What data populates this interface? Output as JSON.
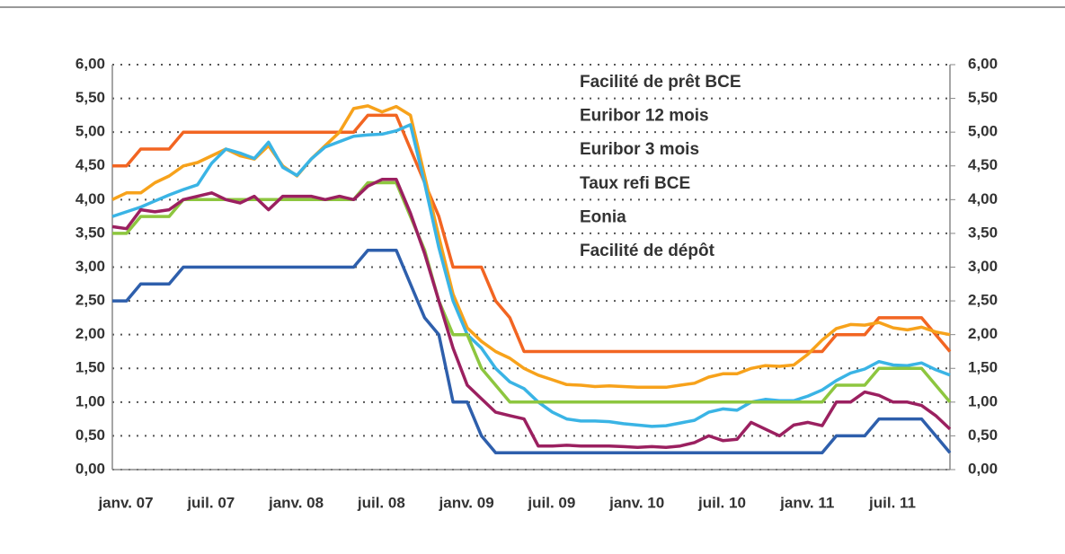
{
  "chart_data": {
    "type": "line",
    "categories": [
      "janv. 07",
      null,
      null,
      null,
      null,
      null,
      "juil. 07",
      null,
      null,
      null,
      null,
      null,
      "janv. 08",
      null,
      null,
      null,
      null,
      null,
      "juil. 08",
      null,
      null,
      null,
      null,
      null,
      "janv. 09",
      null,
      null,
      null,
      null,
      null,
      "juil. 09",
      null,
      null,
      null,
      null,
      null,
      "janv. 10",
      null,
      null,
      null,
      null,
      null,
      "juil. 10",
      null,
      null,
      null,
      null,
      null,
      "janv. 11",
      null,
      null,
      null,
      null,
      null,
      "juil. 11",
      null,
      null,
      null,
      null,
      null
    ],
    "series": [
      {
        "name": "Facilité de prêt BCE",
        "color": "#f26522",
        "values": [
          4.5,
          4.5,
          4.75,
          4.75,
          4.75,
          5,
          5,
          5,
          5,
          5,
          5,
          5,
          5,
          5,
          5,
          5,
          5,
          5,
          5.25,
          5.25,
          5.25,
          4.75,
          4.25,
          3.75,
          3,
          3,
          3,
          2.5,
          2.25,
          1.75,
          1.75,
          1.75,
          1.75,
          1.75,
          1.75,
          1.75,
          1.75,
          1.75,
          1.75,
          1.75,
          1.75,
          1.75,
          1.75,
          1.75,
          1.75,
          1.75,
          1.75,
          1.75,
          1.75,
          1.75,
          1.75,
          2,
          2,
          2,
          2.25,
          2.25,
          2.25,
          2.25,
          2,
          1.75
        ]
      },
      {
        "name": "Euribor 12 mois",
        "color": "#f7a21b",
        "values": [
          4.0,
          4.1,
          4.1,
          4.25,
          4.35,
          4.5,
          4.55,
          4.65,
          4.75,
          4.65,
          4.6,
          4.8,
          4.5,
          4.35,
          4.6,
          4.8,
          5.0,
          5.35,
          5.39,
          5.3,
          5.38,
          5.25,
          4.35,
          3.45,
          2.6,
          2.1,
          1.9,
          1.75,
          1.65,
          1.5,
          1.4,
          1.33,
          1.26,
          1.25,
          1.23,
          1.24,
          1.23,
          1.22,
          1.22,
          1.22,
          1.25,
          1.28,
          1.37,
          1.42,
          1.42,
          1.5,
          1.54,
          1.53,
          1.55,
          1.71,
          1.92,
          2.09,
          2.15,
          2.14,
          2.18,
          2.1,
          2.07,
          2.11,
          2.04,
          2.0
        ]
      },
      {
        "name": "Euribor 3 mois",
        "color": "#3ab4e5",
        "values": [
          3.75,
          3.82,
          3.89,
          3.98,
          4.07,
          4.15,
          4.22,
          4.54,
          4.75,
          4.69,
          4.61,
          4.85,
          4.48,
          4.36,
          4.6,
          4.78,
          4.86,
          4.94,
          4.96,
          4.97,
          5.02,
          5.11,
          4.24,
          3.29,
          2.5,
          2.0,
          1.8,
          1.5,
          1.3,
          1.2,
          1.0,
          0.85,
          0.75,
          0.72,
          0.72,
          0.71,
          0.68,
          0.66,
          0.64,
          0.65,
          0.69,
          0.73,
          0.85,
          0.9,
          0.88,
          1.0,
          1.04,
          1.02,
          1.02,
          1.09,
          1.18,
          1.32,
          1.43,
          1.49,
          1.6,
          1.55,
          1.54,
          1.58,
          1.48,
          1.4
        ]
      },
      {
        "name": "Taux refi BCE",
        "color": "#8dc63f",
        "values": [
          3.5,
          3.5,
          3.75,
          3.75,
          3.75,
          4,
          4,
          4,
          4,
          4,
          4,
          4,
          4,
          4,
          4,
          4,
          4,
          4,
          4.25,
          4.25,
          4.25,
          3.75,
          3.25,
          2.5,
          2,
          2,
          1.5,
          1.25,
          1,
          1,
          1,
          1,
          1,
          1,
          1,
          1,
          1,
          1,
          1,
          1,
          1,
          1,
          1,
          1,
          1,
          1,
          1,
          1,
          1,
          1,
          1,
          1.25,
          1.25,
          1.25,
          1.5,
          1.5,
          1.5,
          1.5,
          1.25,
          1
        ]
      },
      {
        "name": "Eonia",
        "color": "#9b2060",
        "values": [
          3.6,
          3.57,
          3.85,
          3.82,
          3.85,
          4.0,
          4.05,
          4.1,
          4.0,
          3.95,
          4.05,
          3.85,
          4.05,
          4.05,
          4.05,
          4.0,
          4.05,
          4.0,
          4.2,
          4.3,
          4.3,
          3.8,
          3.2,
          2.5,
          1.8,
          1.25,
          1.05,
          0.85,
          0.8,
          0.75,
          0.35,
          0.35,
          0.36,
          0.35,
          0.35,
          0.35,
          0.34,
          0.33,
          0.34,
          0.33,
          0.35,
          0.4,
          0.5,
          0.43,
          0.45,
          0.7,
          0.6,
          0.5,
          0.66,
          0.7,
          0.65,
          1.0,
          1.0,
          1.15,
          1.1,
          1.0,
          1.0,
          0.95,
          0.8,
          0.6
        ]
      },
      {
        "name": "Facilité de dépôt",
        "color": "#2e5fac",
        "values": [
          2.5,
          2.5,
          2.75,
          2.75,
          2.75,
          3,
          3,
          3,
          3,
          3,
          3,
          3,
          3,
          3,
          3,
          3,
          3,
          3,
          3.25,
          3.25,
          3.25,
          2.75,
          2.25,
          2,
          1,
          1,
          0.5,
          0.25,
          0.25,
          0.25,
          0.25,
          0.25,
          0.25,
          0.25,
          0.25,
          0.25,
          0.25,
          0.25,
          0.25,
          0.25,
          0.25,
          0.25,
          0.25,
          0.25,
          0.25,
          0.25,
          0.25,
          0.25,
          0.25,
          0.25,
          0.25,
          0.5,
          0.5,
          0.5,
          0.75,
          0.75,
          0.75,
          0.75,
          0.5,
          0.25
        ]
      }
    ],
    "ylim": [
      0,
      6
    ],
    "yticks": [
      {
        "value": 0,
        "label": "0,00"
      },
      {
        "value": 0.5,
        "label": "0,50"
      },
      {
        "value": 1,
        "label": "1,00"
      },
      {
        "value": 1.5,
        "label": "1,50"
      },
      {
        "value": 2,
        "label": "2,00"
      },
      {
        "value": 2.5,
        "label": "2,50"
      },
      {
        "value": 3,
        "label": "3,00"
      },
      {
        "value": 3.5,
        "label": "3,50"
      },
      {
        "value": 4,
        "label": "4,00"
      },
      {
        "value": 4.5,
        "label": "4,50"
      },
      {
        "value": 5,
        "label": "5,00"
      },
      {
        "value": 5.5,
        "label": "5,50"
      },
      {
        "value": 6,
        "label": "6,00"
      }
    ],
    "y2lim": [
      0,
      6
    ],
    "y2ticks": [
      {
        "value": 0,
        "label": "0,00"
      },
      {
        "value": 0.5,
        "label": "0,50"
      },
      {
        "value": 1,
        "label": "1,00"
      },
      {
        "value": 1.5,
        "label": "1,50"
      },
      {
        "value": 2,
        "label": "2,00"
      },
      {
        "value": 2.5,
        "label": "2,50"
      },
      {
        "value": 3,
        "label": "3,00"
      },
      {
        "value": 3.5,
        "label": "3,50"
      },
      {
        "value": 4,
        "label": "4,00"
      },
      {
        "value": 4.5,
        "label": "4,50"
      },
      {
        "value": 5,
        "label": "5,00"
      },
      {
        "value": 5.5,
        "label": "5,50"
      },
      {
        "value": 6,
        "label": "6,00"
      }
    ],
    "grid": true,
    "legend": "top"
  }
}
